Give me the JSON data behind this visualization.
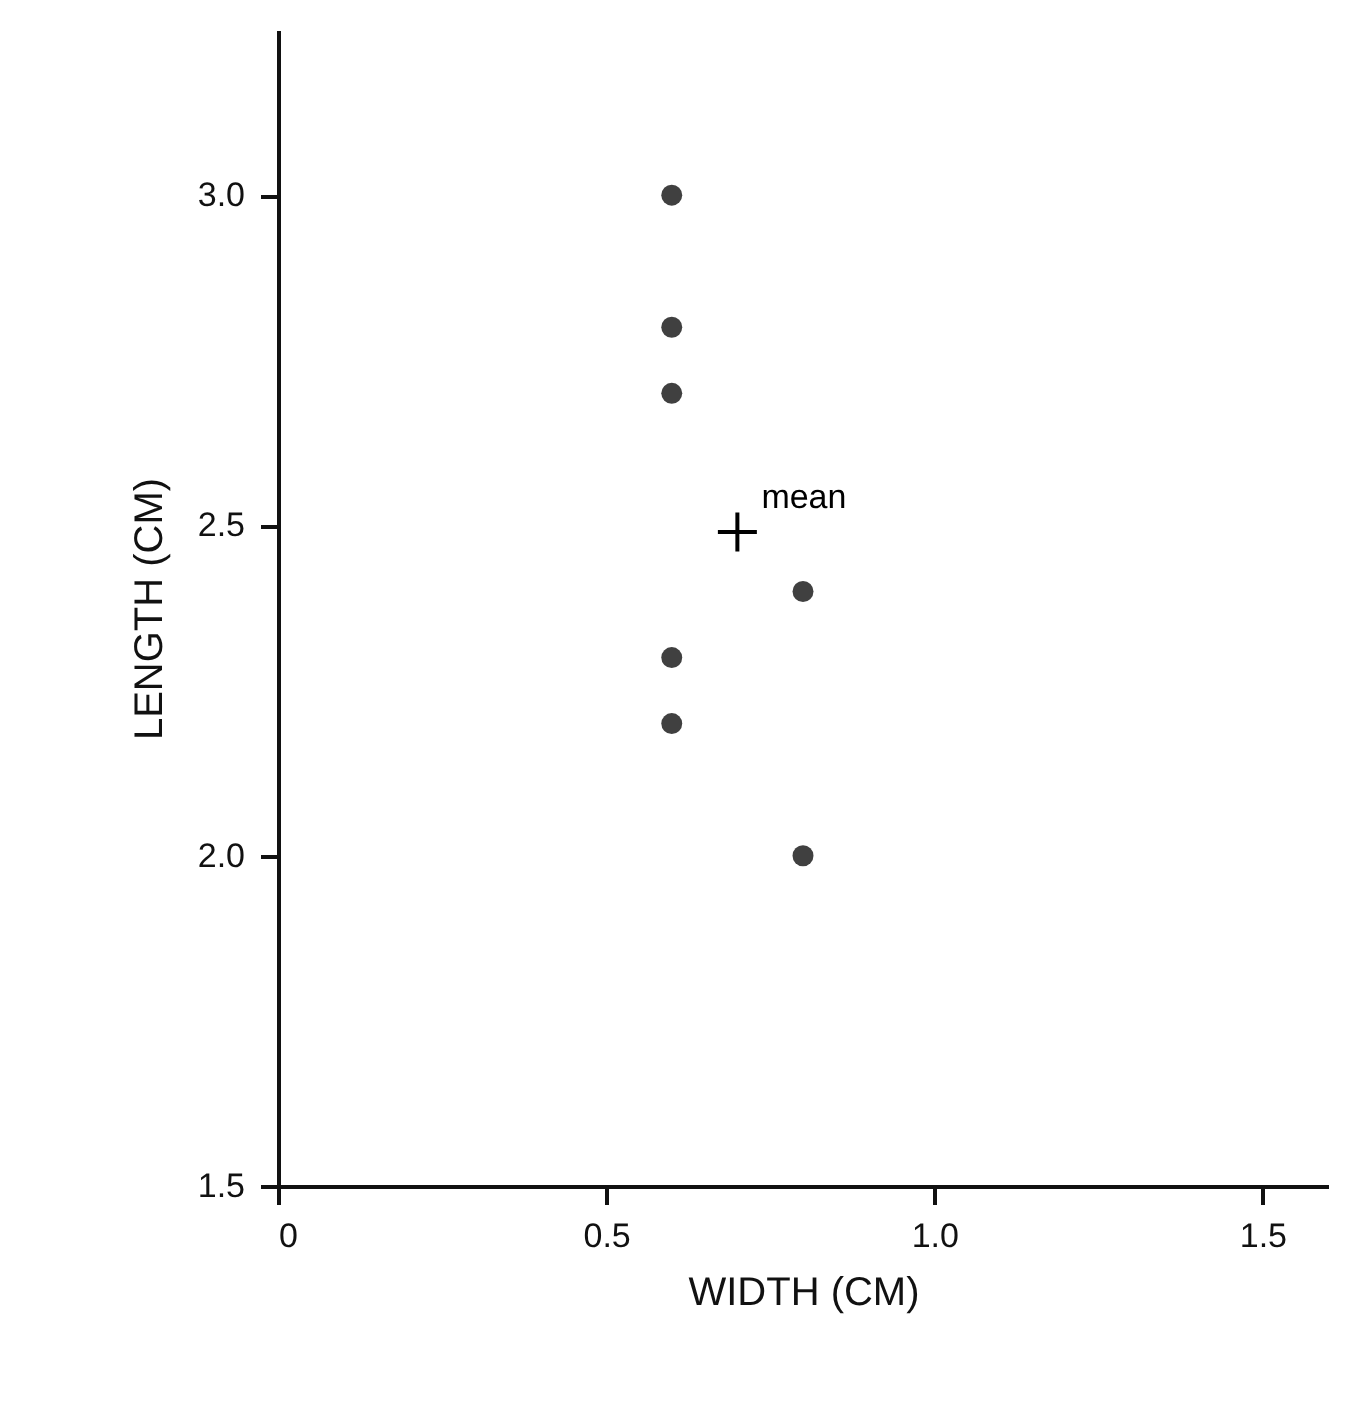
{
  "chart_data": {
    "type": "scatter",
    "xlabel": "WIDTH (CM)",
    "ylabel": "LENGTH (CM)",
    "xlim": [
      0,
      1.6
    ],
    "ylim": [
      1.5,
      3.25
    ],
    "xticks": [
      0,
      {
        "value": 0.5,
        "label": "0.5"
      },
      {
        "value": 1,
        "label": "1.0"
      },
      {
        "value": 1.5,
        "label": "1.5"
      }
    ],
    "yticks": [
      {
        "value": 1.5,
        "label": "1.5"
      },
      {
        "value": 2,
        "label": "2.0"
      },
      {
        "value": 2.5,
        "label": "2.5"
      },
      {
        "value": 3,
        "label": "3.0"
      }
    ],
    "grid": false,
    "series": [
      {
        "color": "#404040",
        "marker": "circle",
        "x": [
          0.6,
          0.6,
          0.6,
          0.8,
          0.6,
          0.6,
          0.8
        ],
        "values": [
          3.0,
          2.8,
          2.7,
          2.4,
          2.3,
          2.2,
          2.0
        ]
      },
      {
        "name": "mean",
        "color": "#000000",
        "marker": "cross",
        "x": [
          0.7
        ],
        "values": [
          2.49
        ]
      }
    ]
  }
}
